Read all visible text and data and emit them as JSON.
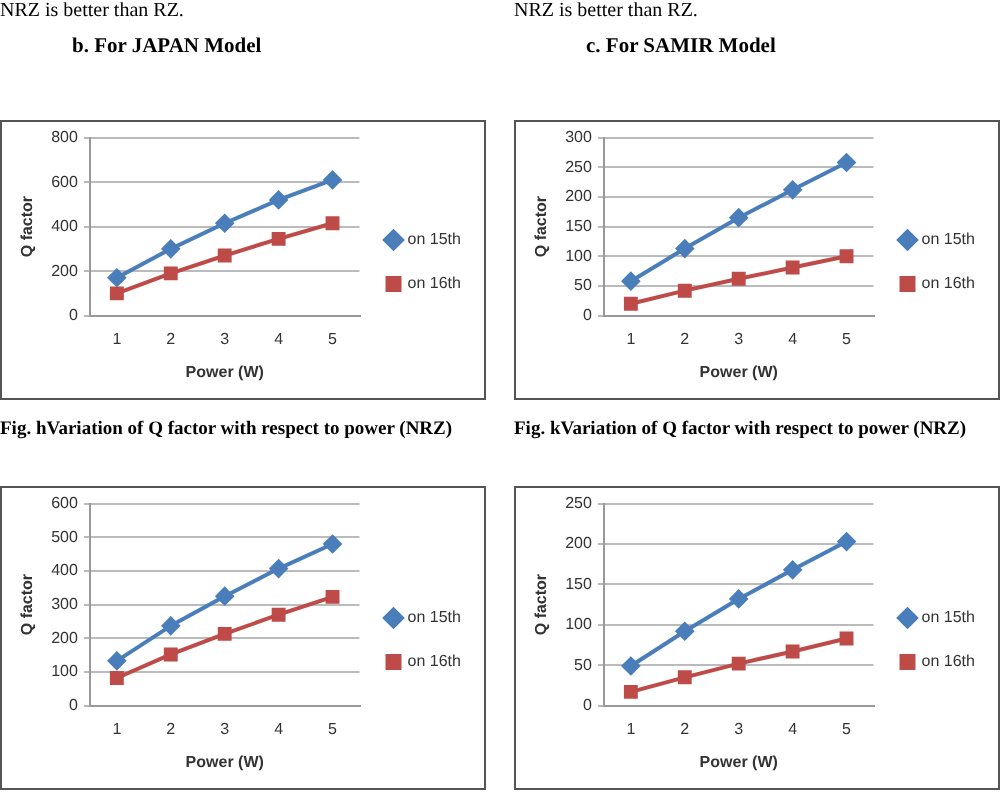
{
  "chart_data": [
    {
      "type": "line",
      "title": "b.    For JAPAN Model",
      "annotations": [
        "NRZ is better than RZ.",
        "Fig. hVariation of Q factor with respect to power (NRZ)"
      ],
      "xlabel": "Power (W)",
      "ylabel": "Q factor",
      "categories": [
        "1",
        "2",
        "3",
        "4",
        "5"
      ],
      "ylim": [
        0,
        800
      ],
      "yticks": [
        0,
        200,
        400,
        600,
        800
      ],
      "grid": "y",
      "legend": "right",
      "series": [
        {
          "name": "on 15th",
          "color": "#4a7ebb",
          "marker": "diamond",
          "values": [
            170,
            300,
            415,
            520,
            610
          ]
        },
        {
          "name": "on 16th",
          "color": "#be4b48",
          "marker": "square",
          "values": [
            100,
            190,
            270,
            345,
            415
          ]
        }
      ]
    },
    {
      "type": "line",
      "title": "c.    For SAMIR Model",
      "annotations": [
        "NRZ is better than RZ.",
        "Fig. kVariation of Q factor with respect to power (NRZ)"
      ],
      "xlabel": "Power (W)",
      "ylabel": "Q factor",
      "categories": [
        "1",
        "2",
        "3",
        "4",
        "5"
      ],
      "ylim": [
        0,
        300
      ],
      "yticks": [
        0,
        50,
        100,
        150,
        200,
        250,
        300
      ],
      "grid": "y",
      "legend": "right",
      "series": [
        {
          "name": "on 15th",
          "color": "#4a7ebb",
          "marker": "diamond",
          "values": [
            58,
            113,
            165,
            212,
            258
          ]
        },
        {
          "name": "on 16th",
          "color": "#be4b48",
          "marker": "square",
          "values": [
            20,
            42,
            62,
            81,
            100
          ]
        }
      ]
    },
    {
      "type": "line",
      "xlabel": "Power (W)",
      "ylabel": "Q factor",
      "categories": [
        "1",
        "2",
        "3",
        "4",
        "5"
      ],
      "ylim": [
        0,
        600
      ],
      "yticks": [
        0,
        100,
        200,
        300,
        400,
        500,
        600
      ],
      "grid": "y",
      "legend": "right",
      "series": [
        {
          "name": "on 15th",
          "color": "#4a7ebb",
          "marker": "diamond",
          "values": [
            133,
            237,
            325,
            407,
            480
          ]
        },
        {
          "name": "on 16th",
          "color": "#be4b48",
          "marker": "square",
          "values": [
            82,
            152,
            213,
            270,
            323
          ]
        }
      ]
    },
    {
      "type": "line",
      "xlabel": "Power (W)",
      "ylabel": "Q factor",
      "categories": [
        "1",
        "2",
        "3",
        "4",
        "5"
      ],
      "ylim": [
        0,
        250
      ],
      "yticks": [
        0,
        50,
        100,
        150,
        200,
        250
      ],
      "grid": "y",
      "legend": "right",
      "series": [
        {
          "name": "on 15th",
          "color": "#4a7ebb",
          "marker": "diamond",
          "values": [
            49,
            92,
            132,
            168,
            203
          ]
        },
        {
          "name": "on 16th",
          "color": "#be4b48",
          "marker": "square",
          "values": [
            17,
            35,
            52,
            67,
            83
          ]
        }
      ]
    }
  ]
}
